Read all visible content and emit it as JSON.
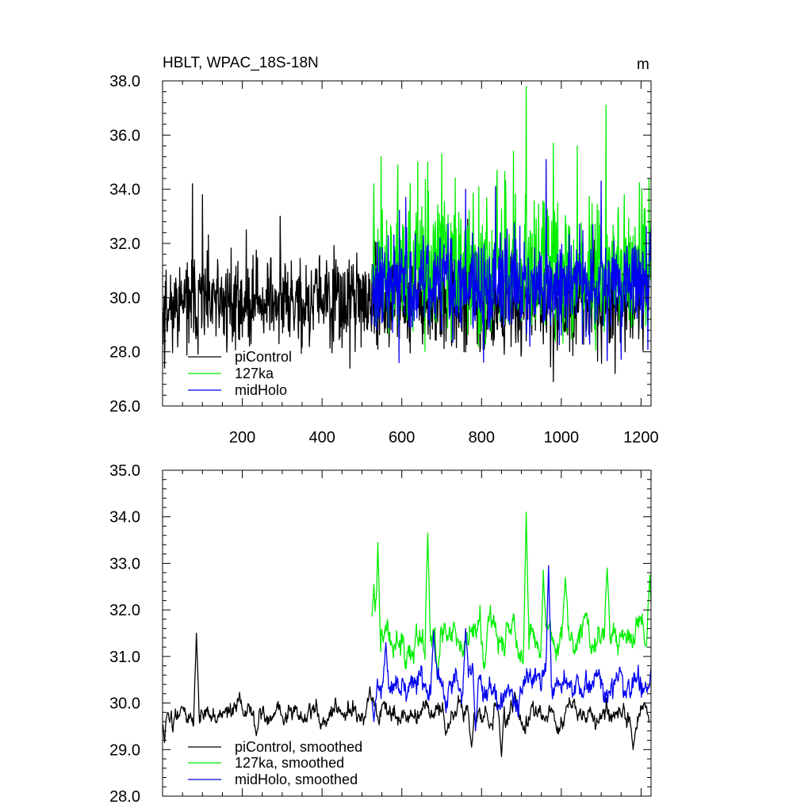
{
  "chart_data": [
    {
      "type": "line",
      "title": "HBLT, WPAC_18S-18N",
      "units": "m",
      "xlim": [
        0,
        1225
      ],
      "ylim": [
        26.0,
        38.0
      ],
      "x_ticks": [
        200,
        400,
        600,
        800,
        1000,
        1200
      ],
      "x_tick_labels": [
        "200",
        "400",
        "600",
        "800",
        "1000",
        "1200"
      ],
      "y_ticks": [
        26.0,
        28.0,
        30.0,
        32.0,
        34.0,
        36.0,
        38.0
      ],
      "y_tick_labels": [
        "26.0",
        "28.0",
        "30.0",
        "32.0",
        "34.0",
        "36.0",
        "38.0"
      ],
      "legend": "bottom-left",
      "series": [
        {
          "name": "piControl",
          "color": "#000000",
          "x_start": 1,
          "x_end": 1220,
          "mean": 29.8,
          "spread": 0.85,
          "seed": 11,
          "peaks": [
            [
              5,
              27.4
            ],
            [
              75,
              34.2
            ],
            [
              100,
              33.8
            ],
            [
              210,
              32.5
            ],
            [
              295,
              33.0
            ],
            [
              470,
              27.4
            ],
            [
              765,
              32.9
            ],
            [
              980,
              26.9
            ],
            [
              1135,
              27.2
            ],
            [
              1220,
              32.2
            ]
          ]
        },
        {
          "name": "127ka",
          "color": "#00ee00",
          "x_start": 525,
          "x_end": 1225,
          "mean": 31.2,
          "spread": 1.25,
          "seed": 23,
          "peaks": [
            [
              530,
              34.2
            ],
            [
              548,
              35.2
            ],
            [
              590,
              34.9
            ],
            [
              640,
              35.0
            ],
            [
              665,
              35.0
            ],
            [
              700,
              35.3
            ],
            [
              880,
              35.4
            ],
            [
              912,
              37.8
            ],
            [
              980,
              35.7
            ],
            [
              1040,
              35.6
            ],
            [
              1112,
              37.1
            ],
            [
              1220,
              34.4
            ]
          ]
        },
        {
          "name": "midHolo",
          "color": "#0000ee",
          "x_start": 525,
          "x_end": 1225,
          "mean": 30.5,
          "spread": 0.95,
          "seed": 37,
          "peaks": [
            [
              593,
              27.6
            ],
            [
              610,
              33.7
            ],
            [
              760,
              34.0
            ],
            [
              835,
              34.1
            ],
            [
              962,
              35.1
            ],
            [
              1100,
              34.3
            ]
          ]
        }
      ]
    },
    {
      "type": "line",
      "title": "",
      "xlim": [
        0,
        1225
      ],
      "ylim": [
        28.0,
        35.0
      ],
      "x_ticks": [
        200,
        400,
        600,
        800,
        1000,
        1200
      ],
      "y_ticks": [
        28.0,
        29.0,
        30.0,
        31.0,
        32.0,
        33.0,
        34.0,
        35.0
      ],
      "y_tick_labels": [
        "28.0",
        "29.0",
        "30.0",
        "31.0",
        "32.0",
        "33.0",
        "34.0",
        "35.0"
      ],
      "legend": "bottom-left",
      "series": [
        {
          "name": "piControl, smoothed",
          "color": "#000000",
          "x_start": 1,
          "x_end": 1220,
          "mean": 29.75,
          "spread": 0.32,
          "seed": 51,
          "peaks": [
            [
              5,
              29.15
            ],
            [
              85,
              31.5
            ],
            [
              235,
              29.3
            ],
            [
              520,
              30.35
            ],
            [
              775,
              29.05
            ],
            [
              850,
              28.85
            ],
            [
              1180,
              29.0
            ]
          ]
        },
        {
          "name": "127ka, smoothed",
          "color": "#00ee00",
          "x_start": 525,
          "x_end": 1225,
          "mean": 31.45,
          "spread": 0.5,
          "seed": 63,
          "peaks": [
            [
              530,
              32.55
            ],
            [
              540,
              33.45
            ],
            [
              665,
              33.65
            ],
            [
              690,
              30.5
            ],
            [
              912,
              34.1
            ],
            [
              955,
              32.85
            ],
            [
              1010,
              32.7
            ],
            [
              1115,
              32.9
            ],
            [
              1222,
              32.75
            ]
          ]
        },
        {
          "name": "midHolo, smoothed",
          "color": "#0000ee",
          "x_start": 525,
          "x_end": 1225,
          "mean": 30.35,
          "spread": 0.45,
          "seed": 71,
          "peaks": [
            [
              530,
              29.6
            ],
            [
              560,
              31.3
            ],
            [
              680,
              31.55
            ],
            [
              760,
              31.6
            ],
            [
              785,
              29.4
            ],
            [
              968,
              32.95
            ],
            [
              1225,
              30.75
            ]
          ]
        }
      ]
    }
  ]
}
